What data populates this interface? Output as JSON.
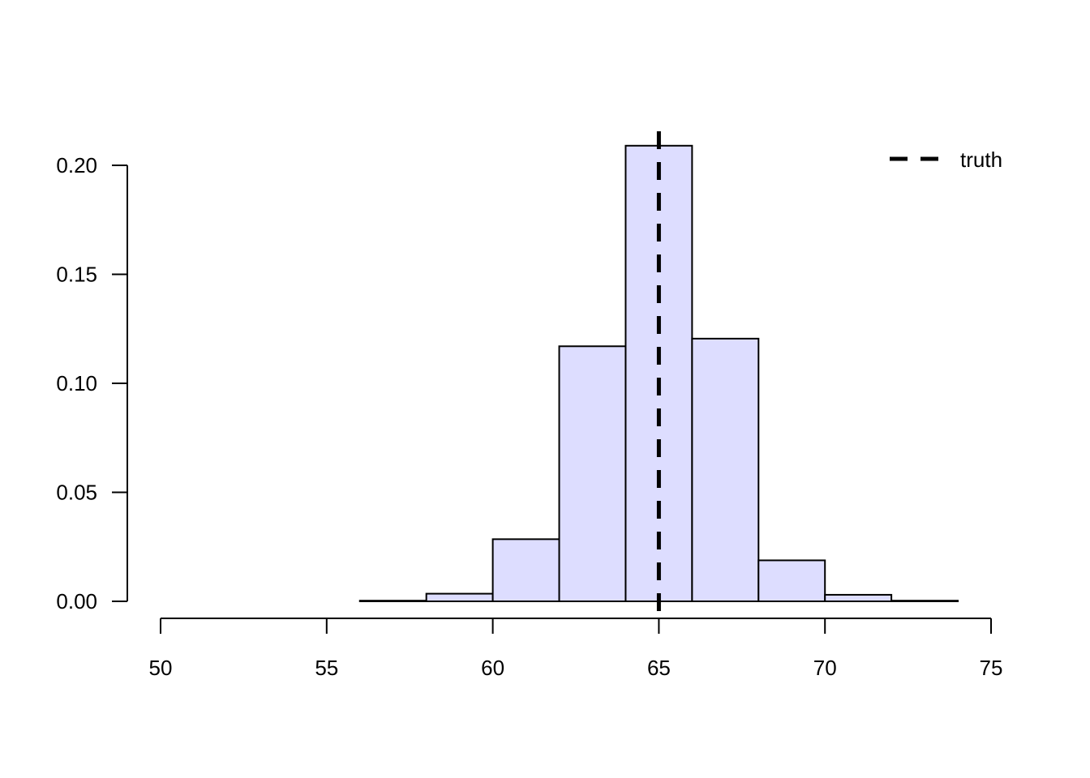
{
  "chart_data": {
    "type": "bar",
    "subtype": "histogram",
    "bins": [
      [
        56,
        58
      ],
      [
        58,
        60
      ],
      [
        60,
        62
      ],
      [
        62,
        64
      ],
      [
        64,
        66
      ],
      [
        66,
        68
      ],
      [
        68,
        70
      ],
      [
        70,
        72
      ],
      [
        72,
        74
      ]
    ],
    "values": [
      0.0003,
      0.0035,
      0.0285,
      0.117,
      0.209,
      0.1205,
      0.0188,
      0.003,
      0.0003
    ],
    "bar_color": "#DDDDFF",
    "xlim": [
      50,
      75
    ],
    "ylim": [
      0,
      0.2
    ],
    "xticks": [
      "50",
      "55",
      "60",
      "65",
      "70",
      "75"
    ],
    "yticks": [
      "0.00",
      "0.05",
      "0.10",
      "0.15",
      "0.20"
    ],
    "vline": {
      "x": 65,
      "style": "dashed",
      "color": "#000000"
    },
    "legend": {
      "position": "top-right",
      "entries": [
        {
          "label": "truth",
          "style": "dashed"
        }
      ]
    },
    "grid": false,
    "title": "",
    "xlabel": "",
    "ylabel": ""
  }
}
